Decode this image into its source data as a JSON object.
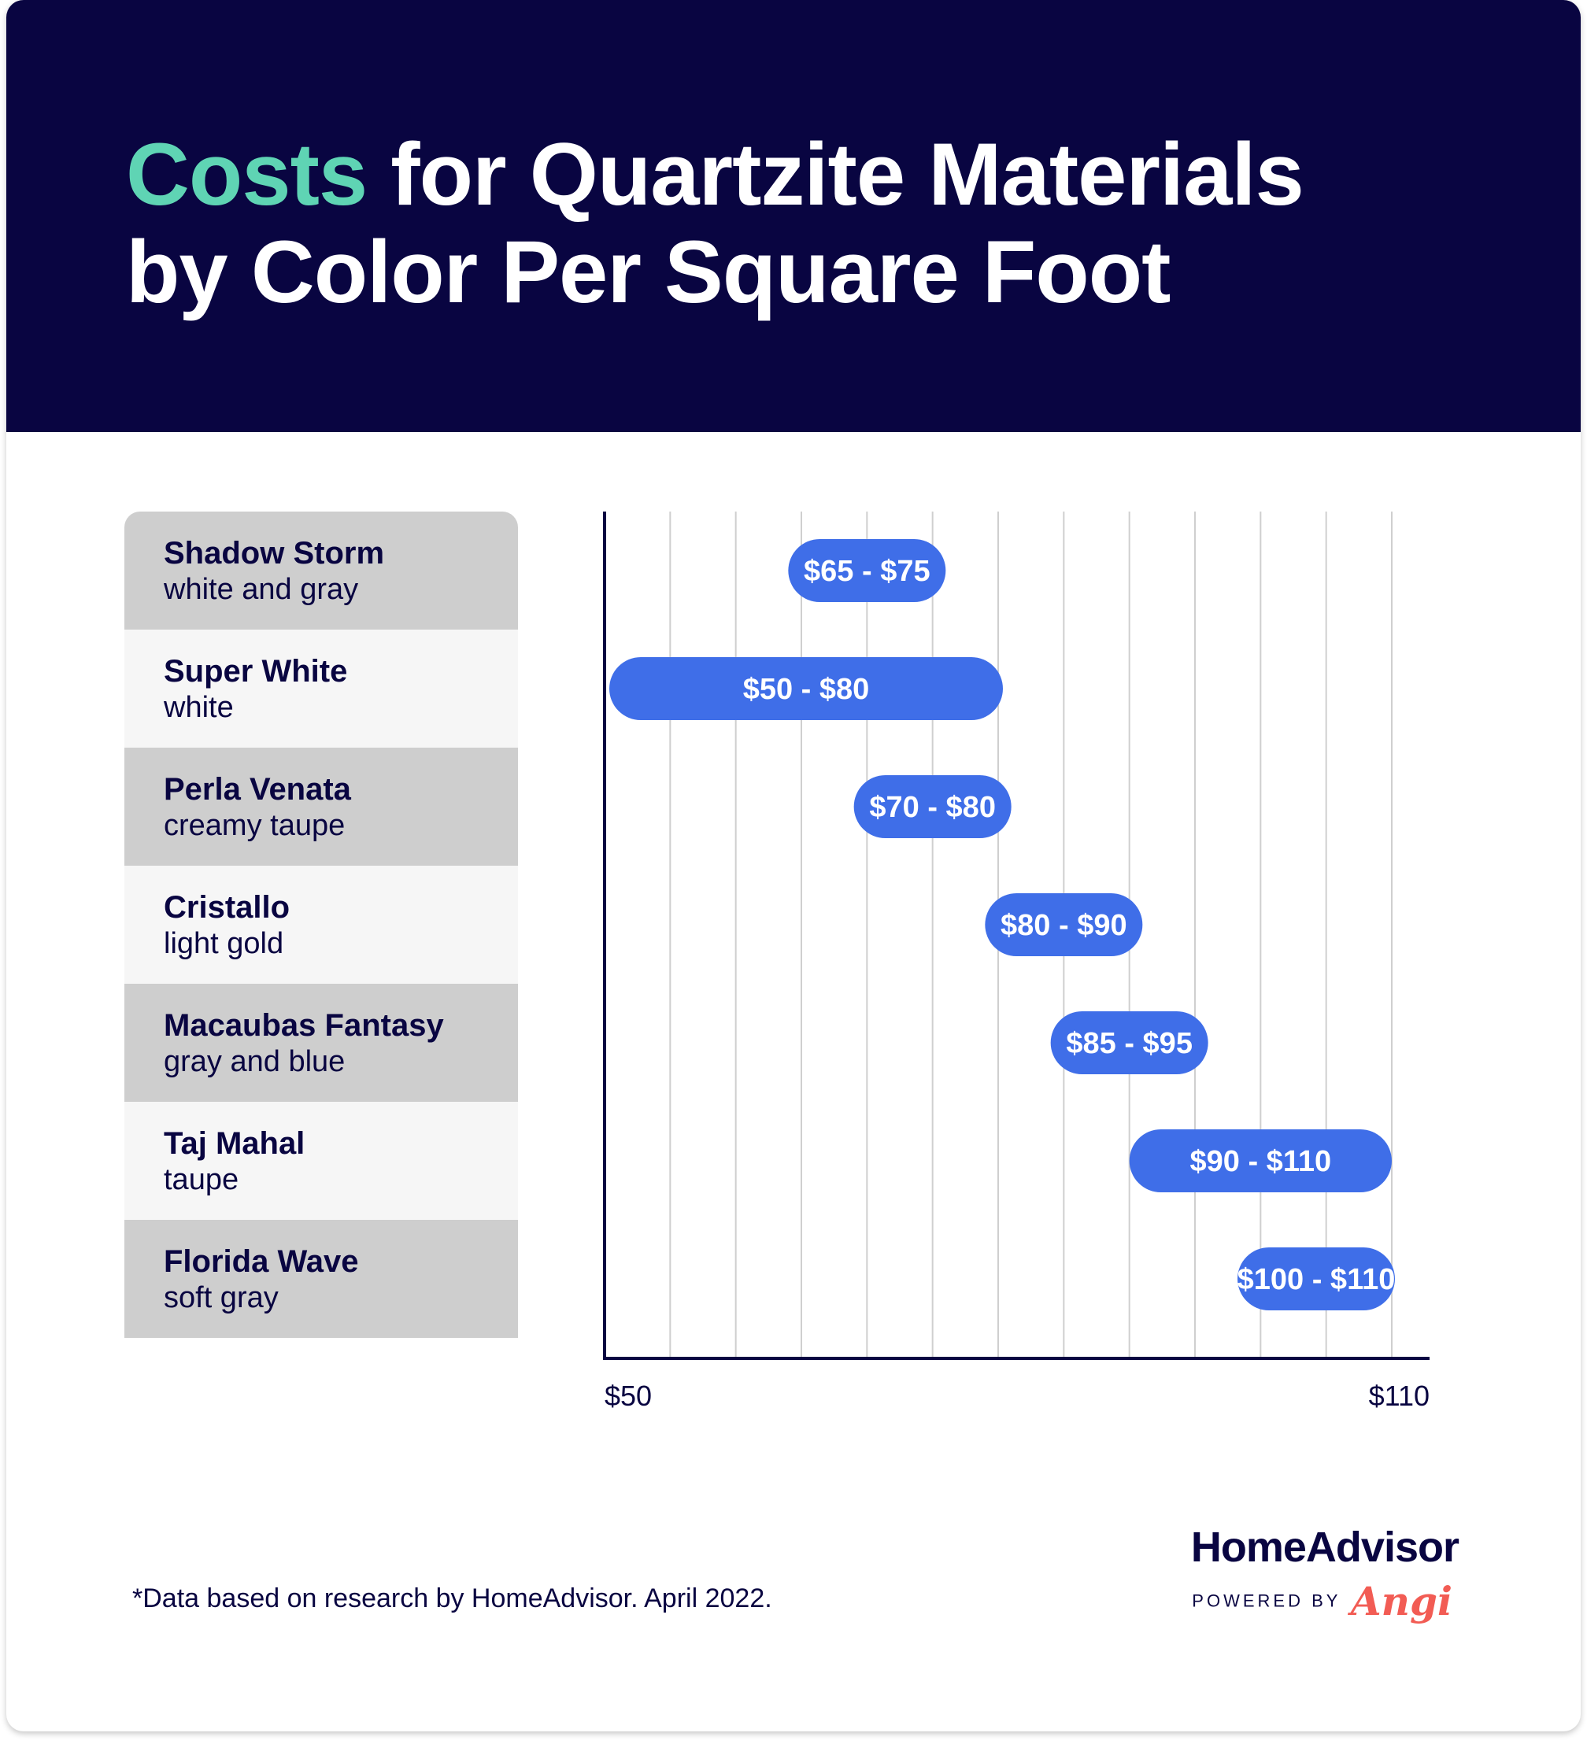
{
  "title": {
    "accent": "Costs",
    "rest_line1": "for Quartzite Materials",
    "line2": "by Color Per Square Foot"
  },
  "colors": {
    "header_bg": "#090541",
    "accent": "#5fd4b4",
    "bar": "#3f6ee8",
    "row_gray": "#cecece",
    "row_light": "#f6f6f6",
    "angi": "#f25c54"
  },
  "chart_data": {
    "type": "bar",
    "orientation": "horizontal-range",
    "categories": [
      {
        "name": "Shadow Storm",
        "color": "white and gray"
      },
      {
        "name": "Super White",
        "color": "white"
      },
      {
        "name": "Perla Venata",
        "color": "creamy taupe"
      },
      {
        "name": "Cristallo",
        "color": "light gold"
      },
      {
        "name": "Macaubas Fantasy",
        "color": "gray and blue"
      },
      {
        "name": "Taj Mahal",
        "color": "taupe"
      },
      {
        "name": "Florida Wave",
        "color": "soft gray"
      }
    ],
    "ranges": [
      {
        "low": 65,
        "high": 75,
        "label": "$65 - $75"
      },
      {
        "low": 50,
        "high": 80,
        "label": "$50 - $80"
      },
      {
        "low": 70,
        "high": 80,
        "label": "$70 - $80"
      },
      {
        "low": 80,
        "high": 90,
        "label": "$80 - $90"
      },
      {
        "low": 85,
        "high": 95,
        "label": "$85 - $95"
      },
      {
        "low": 90,
        "high": 110,
        "label": "$90 - $110"
      },
      {
        "low": 100,
        "high": 110,
        "label": "$100 - $110"
      }
    ],
    "xlim": [
      50,
      110
    ],
    "x_tick_labels": [
      "$50",
      "$110"
    ],
    "grid": true,
    "title": "Costs for Quartzite Materials by Color Per Square Foot"
  },
  "footnote": "*Data based on research by HomeAdvisor. April 2022.",
  "brand": {
    "name": "HomeAdvisor",
    "powered_by": "POWERED BY",
    "angi": "Angi"
  }
}
